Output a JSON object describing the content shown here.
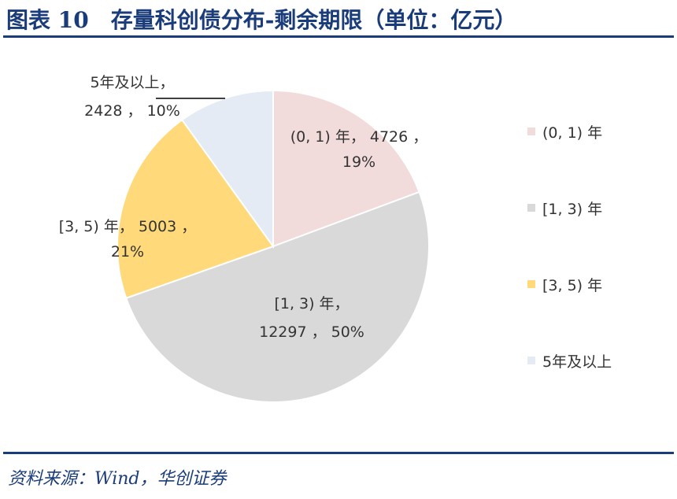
{
  "header": {
    "title": "图表 10　存量科创债分布-剩余期限（单位：亿元）"
  },
  "footer": {
    "source": "资料来源：Wind，华创证券"
  },
  "chart_data": {
    "type": "pie",
    "title": "",
    "legend_position": "right",
    "slices": [
      {
        "name": "(0, 1) 年",
        "value": 4726,
        "percent": "19%",
        "color": "#f2dcdb",
        "label_line1": "(0, 1) 年， 4726 ，",
        "label_line2": "19%"
      },
      {
        "name": "[1, 3) 年",
        "value": 12297,
        "percent": "50%",
        "color": "#d9d9d9",
        "label_line1": "[1, 3) 年，",
        "label_line2": "12297 ， 50%"
      },
      {
        "name": "[3, 5) 年",
        "value": 5003,
        "percent": "21%",
        "color": "#ffd97a",
        "label_line1": "[3, 5) 年， 5003 ，",
        "label_line2": "21%"
      },
      {
        "name": "5年及以上",
        "value": 2428,
        "percent": "10%",
        "color": "#e4ebf5",
        "label_line1": "5年及以上，",
        "label_line2": "2428 ， 10%"
      }
    ]
  }
}
